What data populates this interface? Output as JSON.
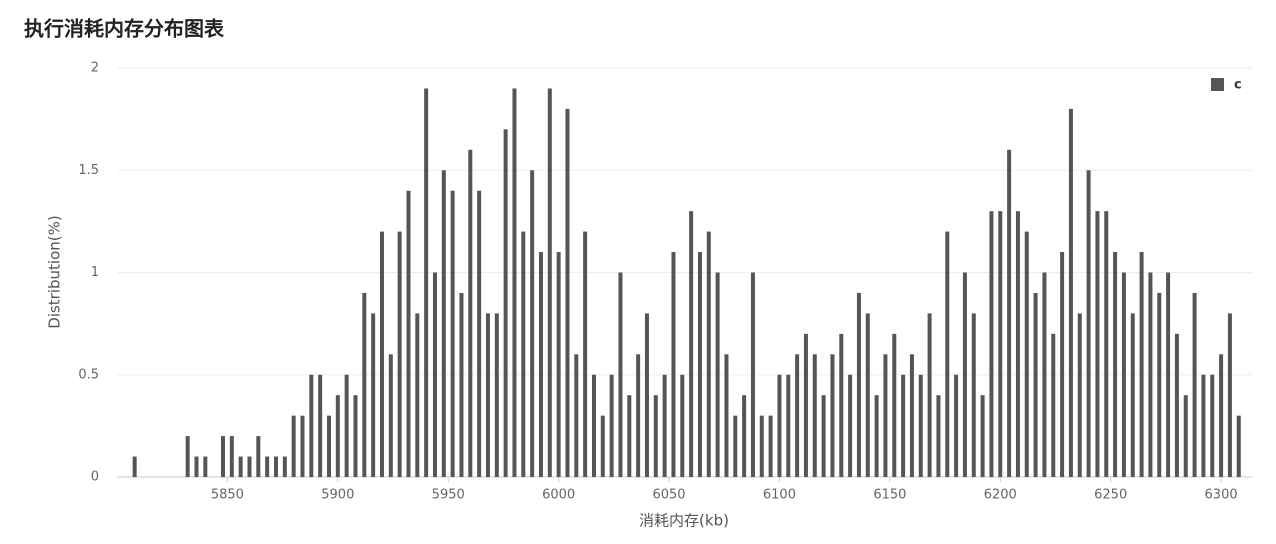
{
  "chart_data": {
    "type": "bar",
    "title": "执行消耗内存分布图表",
    "x_label": "消耗内存(kb)",
    "y_label": "Distribution(%)",
    "x": [
      5808,
      5832,
      5836,
      5840,
      5848,
      5852,
      5856,
      5860,
      5864,
      5868,
      5872,
      5876,
      5880,
      5884,
      5888,
      5892,
      5896,
      5900,
      5904,
      5908,
      5912,
      5916,
      5920,
      5924,
      5928,
      5932,
      5936,
      5940,
      5944,
      5948,
      5952,
      5956,
      5960,
      5964,
      5968,
      5972,
      5976,
      5980,
      5984,
      5988,
      5992,
      5996,
      6000,
      6004,
      6008,
      6012,
      6016,
      6020,
      6024,
      6028,
      6032,
      6036,
      6040,
      6044,
      6048,
      6052,
      6056,
      6060,
      6064,
      6068,
      6072,
      6076,
      6080,
      6084,
      6088,
      6092,
      6096,
      6100,
      6104,
      6108,
      6112,
      6116,
      6120,
      6124,
      6128,
      6132,
      6136,
      6140,
      6144,
      6148,
      6152,
      6156,
      6160,
      6164,
      6168,
      6172,
      6176,
      6180,
      6184,
      6188,
      6192,
      6196,
      6200,
      6204,
      6208,
      6212,
      6216,
      6220,
      6224,
      6228,
      6232,
      6236,
      6240,
      6244,
      6248,
      6252,
      6256,
      6260,
      6264,
      6268,
      6272,
      6276,
      6280,
      6284,
      6288,
      6292,
      6296,
      6300,
      6304,
      6308
    ],
    "series": [
      {
        "name": "c",
        "color": "#555555",
        "values": [
          0.1,
          0.2,
          0.1,
          0.1,
          0.2,
          0.2,
          0.1,
          0.1,
          0.2,
          0.1,
          0.1,
          0.1,
          0.3,
          0.3,
          0.5,
          0.5,
          0.3,
          0.4,
          0.5,
          0.4,
          0.9,
          0.8,
          1.2,
          0.6,
          1.2,
          1.4,
          0.8,
          1.9,
          1.0,
          1.5,
          1.4,
          0.9,
          1.6,
          1.4,
          0.8,
          0.8,
          1.7,
          1.9,
          1.2,
          1.5,
          1.1,
          1.9,
          1.1,
          1.8,
          0.6,
          1.2,
          0.5,
          0.3,
          0.5,
          1.0,
          0.4,
          0.6,
          0.8,
          0.4,
          0.5,
          1.1,
          0.5,
          1.3,
          1.1,
          1.2,
          1.0,
          0.6,
          0.3,
          0.4,
          1.0,
          0.3,
          0.3,
          0.5,
          0.5,
          0.6,
          0.7,
          0.6,
          0.4,
          0.6,
          0.7,
          0.5,
          0.9,
          0.8,
          0.4,
          0.6,
          0.7,
          0.5,
          0.6,
          0.5,
          0.8,
          0.4,
          1.2,
          0.5,
          1.0,
          0.8,
          0.4,
          1.3,
          1.3,
          1.6,
          1.3,
          1.2,
          0.9,
          1.0,
          0.7,
          1.1,
          1.8,
          0.8,
          1.5,
          1.3,
          1.3,
          1.1,
          1.0,
          0.8,
          1.1,
          1.0,
          0.9,
          1.0,
          0.7,
          0.4,
          0.9,
          0.5,
          0.5,
          0.6,
          0.8,
          0.3
        ]
      }
    ],
    "xlim": [
      5800,
      6314
    ],
    "xticks": [
      5850,
      5900,
      5950,
      6000,
      6050,
      6100,
      6150,
      6200,
      6250,
      6300
    ],
    "ylim": [
      0,
      2
    ],
    "yticks": [
      0,
      0.5,
      1,
      1.5,
      2
    ],
    "grid": true,
    "legend": "top-right"
  }
}
